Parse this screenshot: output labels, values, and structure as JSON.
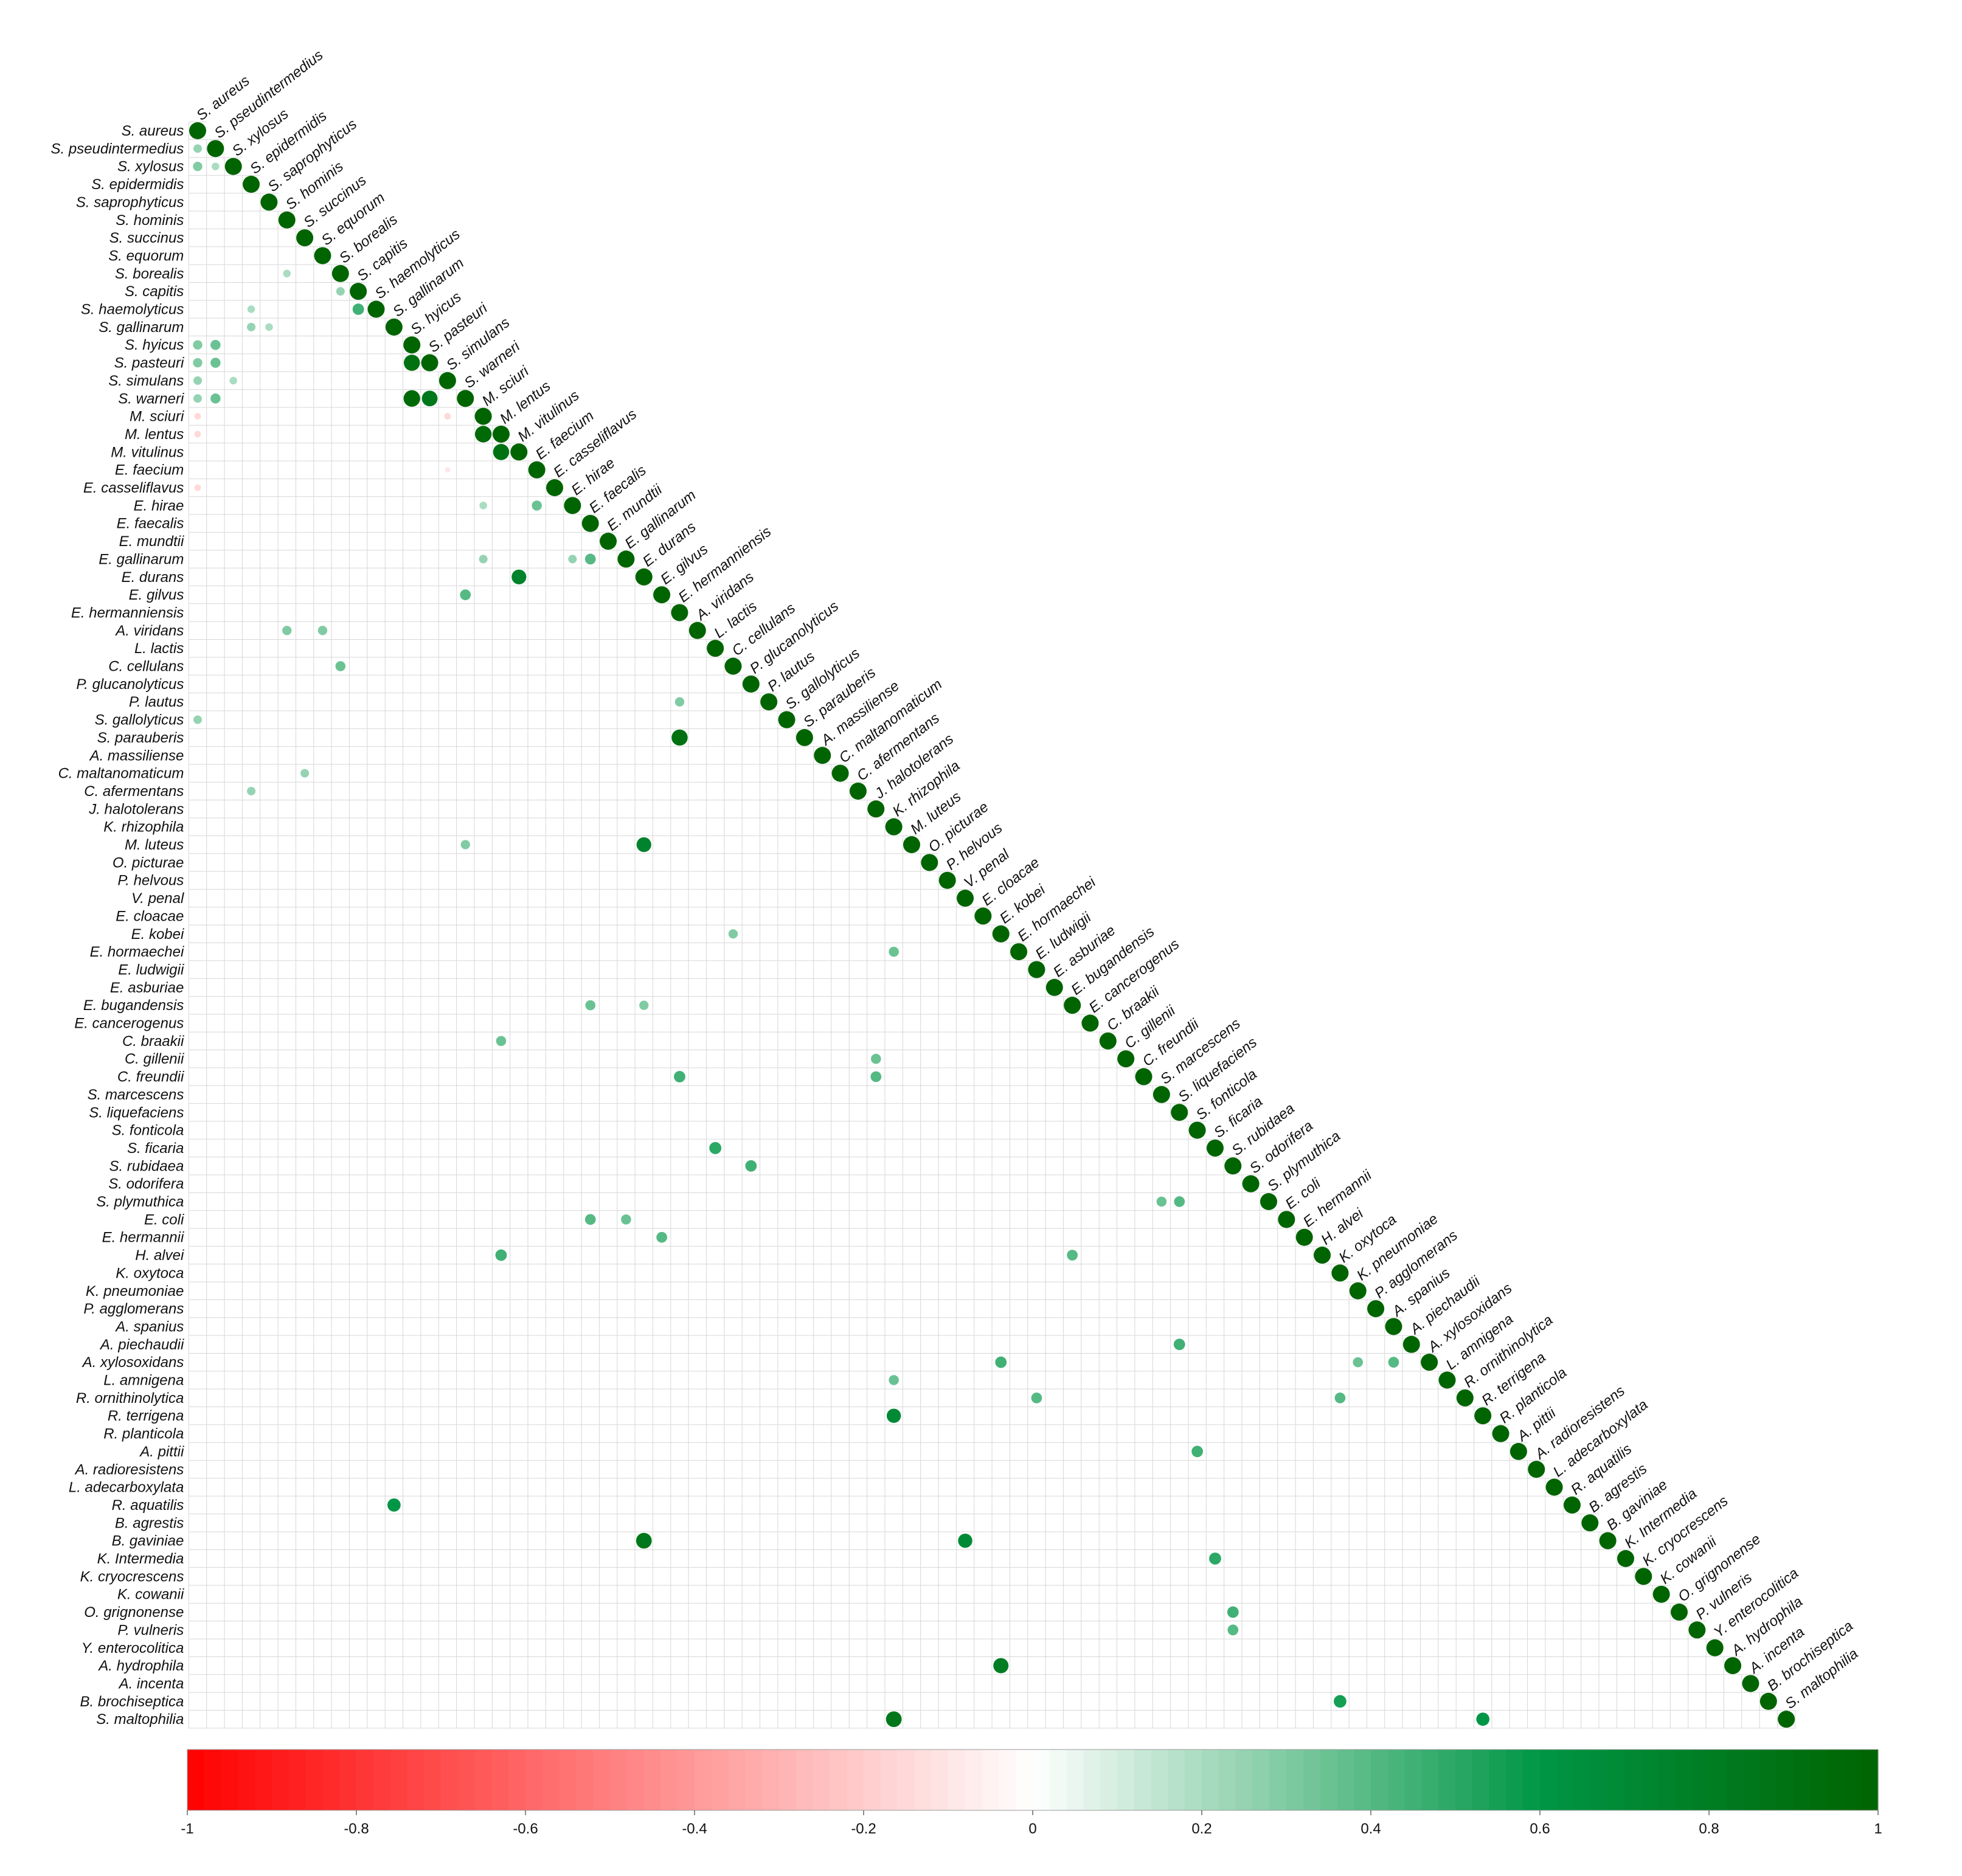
{
  "chart_data": {
    "type": "heatmap",
    "subtype": "lower-triangular correlation matrix (circle glyphs)",
    "species": [
      "S. aureus",
      "S. pseudintermedius",
      "S. xylosus",
      "S. epidermidis",
      "S. saprophyticus",
      "S. hominis",
      "S. succinus",
      "S. equorum",
      "S. borealis",
      "S. capitis",
      "S. haemolyticus",
      "S. gallinarum",
      "S. hyicus",
      "S. pasteuri",
      "S. simulans",
      "S. warneri",
      "M. sciuri",
      "M. lentus",
      "M. vitulinus",
      "E. faecium",
      "E. casseliflavus",
      "E. hirae",
      "E. faecalis",
      "E. mundtii",
      "E. gallinarum",
      "E. durans",
      "E. gilvus",
      "E. hermanniensis",
      "A. viridans",
      "L. lactis",
      "C. cellulans",
      "P. glucanolyticus",
      "P. lautus",
      "S. gallolyticus",
      "S. parauberis",
      "A. massiliense",
      "C. maltanomaticum",
      "C. afermentans",
      "J. halotolerans",
      "K. rhizophila",
      "M. luteus",
      "O. picturae",
      "P. helvous",
      "V. penal",
      "E. cloacae",
      "E. kobei",
      "E. hormaechei",
      "E. ludwigii",
      "E. asburiae",
      "E. bugandensis",
      "E. cancerogenus",
      "C. braakii",
      "C. gillenii",
      "C. freundii",
      "S. marcescens",
      "S. liquefaciens",
      "S. fonticola",
      "S. ficaria",
      "S. rubidaea",
      "S. odorifera",
      "S. plymuthica",
      "E. coli",
      "E. hermannii",
      "H. alvei",
      "K. oxytoca",
      "K. pneumoniae",
      "P. agglomerans",
      "A. spanius",
      "A. piechaudii",
      "A. xylosoxidans",
      "L. amnigena",
      "R. ornithinolytica",
      "R. terrigena",
      "R. planticola",
      "A. pittii",
      "A. radioresistens",
      "L. adecarboxylata",
      "R. aquatilis",
      "B. agrestis",
      "B. gaviniae",
      "K. Intermedia",
      "K. cryocrescens",
      "K. cowanii",
      "O. grignonense",
      "P. vulneris",
      "Y. enterocolitica",
      "A. hydrophila",
      "A. incenta",
      "B. brochiseptica",
      "S. maltophilia"
    ],
    "diagonal_value": 1,
    "notable_correlations": [
      {
        "row": "S. pseudintermedius",
        "col": "S. aureus",
        "value": 0.25
      },
      {
        "row": "S. xylosus",
        "col": "S. aureus",
        "value": 0.3
      },
      {
        "row": "S. xylosus",
        "col": "S. pseudintermedius",
        "value": 0.2
      },
      {
        "row": "S. borealis",
        "col": "S. hominis",
        "value": 0.2
      },
      {
        "row": "S. capitis",
        "col": "S. borealis",
        "value": 0.25
      },
      {
        "row": "S. haemolyticus",
        "col": "S. capitis",
        "value": 0.45
      },
      {
        "row": "S. haemolyticus",
        "col": "S. epidermidis",
        "value": 0.2
      },
      {
        "row": "S. gallinarum",
        "col": "S. epidermidis",
        "value": 0.25
      },
      {
        "row": "S. gallinarum",
        "col": "S. saprophyticus",
        "value": 0.2
      },
      {
        "row": "S. hyicus",
        "col": "S. aureus",
        "value": 0.3
      },
      {
        "row": "S. hyicus",
        "col": "S. pseudintermedius",
        "value": 0.35
      },
      {
        "row": "S. pasteuri",
        "col": "S. aureus",
        "value": 0.3
      },
      {
        "row": "S. pasteuri",
        "col": "S. pseudintermedius",
        "value": 0.35
      },
      {
        "row": "S. pasteuri",
        "col": "S. hyicus",
        "value": 0.9
      },
      {
        "row": "S. simulans",
        "col": "S. aureus",
        "value": 0.25
      },
      {
        "row": "S. simulans",
        "col": "S. xylosus",
        "value": 0.2
      },
      {
        "row": "S. warneri",
        "col": "S. aureus",
        "value": 0.25
      },
      {
        "row": "S. warneri",
        "col": "S. pseudintermedius",
        "value": 0.35
      },
      {
        "row": "S. warneri",
        "col": "S. hyicus",
        "value": 0.95
      },
      {
        "row": "S. warneri",
        "col": "S. pasteuri",
        "value": 0.85
      },
      {
        "row": "M. sciuri",
        "col": "S. aureus",
        "value": -0.15
      },
      {
        "row": "M. sciuri",
        "col": "S. simulans",
        "value": -0.15
      },
      {
        "row": "M. lentus",
        "col": "S. aureus",
        "value": -0.15
      },
      {
        "row": "M. lentus",
        "col": "M. sciuri",
        "value": 0.95
      },
      {
        "row": "M. vitulinus",
        "col": "M. lentus",
        "value": 0.9
      },
      {
        "row": "E. faecium",
        "col": "S. simulans",
        "value": -0.1
      },
      {
        "row": "E. casseliflavus",
        "col": "S. aureus",
        "value": -0.15
      },
      {
        "row": "E. hirae",
        "col": "E. faecium",
        "value": 0.35
      },
      {
        "row": "E. hirae",
        "col": "M. sciuri",
        "value": 0.2
      },
      {
        "row": "E. gallinarum",
        "col": "M. sciuri",
        "value": 0.25
      },
      {
        "row": "E. gallinarum",
        "col": "E. hirae",
        "value": 0.25
      },
      {
        "row": "E. gallinarum",
        "col": "E. faecalis",
        "value": 0.4
      },
      {
        "row": "E. durans",
        "col": "M. vitulinus",
        "value": 0.75
      },
      {
        "row": "E. gilvus",
        "col": "S. warneri",
        "value": 0.4
      },
      {
        "row": "A. viridans",
        "col": "S. hominis",
        "value": 0.3
      },
      {
        "row": "A. viridans",
        "col": "S. equorum",
        "value": 0.3
      },
      {
        "row": "C. cellulans",
        "col": "S. borealis",
        "value": 0.35
      },
      {
        "row": "P. lautus",
        "col": "E. hermanniensis",
        "value": 0.3
      },
      {
        "row": "S. gallolyticus",
        "col": "S. aureus",
        "value": 0.25
      },
      {
        "row": "S. parauberis",
        "col": "E. hermanniensis",
        "value": 0.9
      },
      {
        "row": "C. maltanomaticum",
        "col": "S. succinus",
        "value": 0.25
      },
      {
        "row": "C. afermentans",
        "col": "S. epidermidis",
        "value": 0.25
      },
      {
        "row": "M. luteus",
        "col": "E. durans",
        "value": 0.75
      },
      {
        "row": "M. luteus",
        "col": "S. warneri",
        "value": 0.3
      },
      {
        "row": "E. kobei",
        "col": "C. cellulans",
        "value": 0.3
      },
      {
        "row": "E. hormaechei",
        "col": "K. rhizophila",
        "value": 0.35
      },
      {
        "row": "E. bugandensis",
        "col": "E. faecalis",
        "value": 0.35
      },
      {
        "row": "E. bugandensis",
        "col": "E. durans",
        "value": 0.3
      },
      {
        "row": "C. braakii",
        "col": "M. lentus",
        "value": 0.35
      },
      {
        "row": "C. gillenii",
        "col": "J. halotolerans",
        "value": 0.35
      },
      {
        "row": "C. freundii",
        "col": "E. hermanniensis",
        "value": 0.45
      },
      {
        "row": "C. freundii",
        "col": "J. halotolerans",
        "value": 0.4
      },
      {
        "row": "S. ficaria",
        "col": "L. lactis",
        "value": 0.5
      },
      {
        "row": "S. rubidaea",
        "col": "P. glucanolyticus",
        "value": 0.45
      },
      {
        "row": "S. plymuthica",
        "col": "S. marcescens",
        "value": 0.35
      },
      {
        "row": "S. plymuthica",
        "col": "S. liquefaciens",
        "value": 0.4
      },
      {
        "row": "E. coli",
        "col": "E. faecalis",
        "value": 0.4
      },
      {
        "row": "E. coli",
        "col": "E. gallinarum",
        "value": 0.35
      },
      {
        "row": "E. hermannii",
        "col": "E. gilvus",
        "value": 0.4
      },
      {
        "row": "H. alvei",
        "col": "M. lentus",
        "value": 0.45
      },
      {
        "row": "H. alvei",
        "col": "E. bugandensis",
        "value": 0.4
      },
      {
        "row": "A. xylosoxidans",
        "col": "E. kobei",
        "value": 0.45
      },
      {
        "row": "A. xylosoxidans",
        "col": "A. spanius",
        "value": 0.4
      },
      {
        "row": "A. xylosoxidans",
        "col": "K. pneumoniae",
        "value": 0.35
      },
      {
        "row": "A. piechaudii",
        "col": "S. liquefaciens",
        "value": 0.45
      },
      {
        "row": "L. amnigena",
        "col": "K. rhizophila",
        "value": 0.35
      },
      {
        "row": "R. ornithinolytica",
        "col": "E. ludwigii",
        "value": 0.4
      },
      {
        "row": "R. ornithinolytica",
        "col": "K. oxytoca",
        "value": 0.4
      },
      {
        "row": "R. terrigena",
        "col": "K. rhizophila",
        "value": 0.7
      },
      {
        "row": "A. pittii",
        "col": "S. fonticola",
        "value": 0.45
      },
      {
        "row": "R. aquatilis",
        "col": "S. gallinarum",
        "value": 0.6
      },
      {
        "row": "B. gaviniae",
        "col": "E. durans",
        "value": 0.85
      },
      {
        "row": "B. gaviniae",
        "col": "V. penal",
        "value": 0.7
      },
      {
        "row": "K. Intermedia",
        "col": "S. ficaria",
        "value": 0.5
      },
      {
        "row": "O. grignonense",
        "col": "S. rubidaea",
        "value": 0.45
      },
      {
        "row": "P. vulneris",
        "col": "S. rubidaea",
        "value": 0.4
      },
      {
        "row": "A. hydrophila",
        "col": "E. kobei",
        "value": 0.8
      },
      {
        "row": "B. brochiseptica",
        "col": "K. oxytoca",
        "value": 0.55
      },
      {
        "row": "S. maltophilia",
        "col": "K. rhizophila",
        "value": 0.85
      },
      {
        "row": "S. maltophilia",
        "col": "R. terrigena",
        "value": 0.6
      }
    ],
    "colorbar": {
      "range": [
        -1,
        1
      ],
      "ticks": [
        "-1",
        "-0.8",
        "-0.6",
        "-0.4",
        "-0.2",
        "0",
        "0.2",
        "0.4",
        "0.6",
        "0.8",
        "1"
      ],
      "negative_color": "#ff0000",
      "zero_color": "#ffffff",
      "positive_color": "#006400"
    },
    "grid": true,
    "legend_position": "bottom"
  }
}
